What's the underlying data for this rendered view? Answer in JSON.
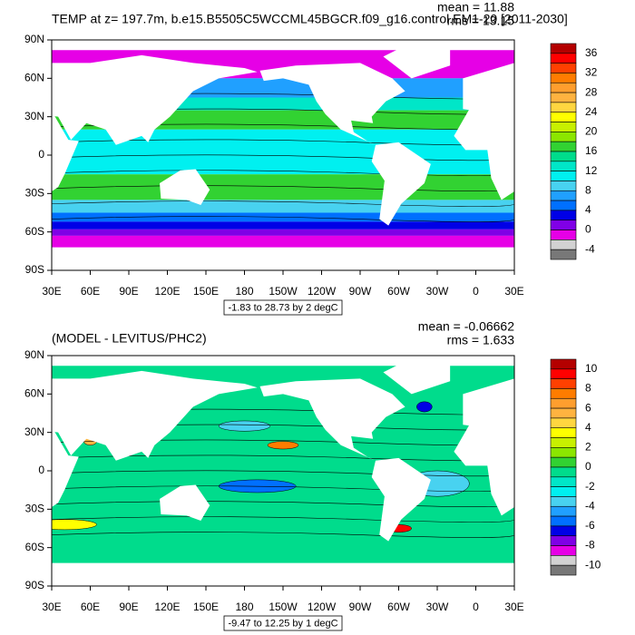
{
  "panels": [
    {
      "title": "TEMP at z= 197.7m, b.e15.B5505C5WCCML45BGCR.f09_g16.control.EM1-20 [2011-2030]",
      "stats": [
        "mean = 11.88",
        "rms = 13.15"
      ],
      "range_label": "-1.83 to 28.73 by 2 degC",
      "colorbar": {
        "labels": [
          36,
          32,
          28,
          24,
          20,
          16,
          12,
          8,
          4,
          0,
          -4
        ]
      }
    },
    {
      "title": "(MODEL - LEVITUS/PHC2)",
      "stats": [
        "mean = -0.06662",
        "rms = 1.633"
      ],
      "range_label": "-9.47 to 12.25 by 1 degC",
      "colorbar": {
        "labels": [
          10,
          8,
          6,
          4,
          2,
          0,
          -2,
          -4,
          -6,
          -8,
          -10
        ]
      }
    }
  ],
  "axes": {
    "lat_labels": [
      "90N",
      "60N",
      "30N",
      "0",
      "30S",
      "60S",
      "90S"
    ],
    "lon_labels": [
      "30E",
      "60E",
      "90E",
      "120E",
      "150E",
      "180",
      "150W",
      "120W",
      "90W",
      "60W",
      "30W",
      "0",
      "30E"
    ]
  },
  "colorbar_colors": [
    "#b40000",
    "#ff0000",
    "#ff4000",
    "#ff7c00",
    "#ff9e2e",
    "#ffb340",
    "#ffd640",
    "#ffff00",
    "#c8f000",
    "#8ce600",
    "#32d232",
    "#00dc8c",
    "#00e6c8",
    "#00f0f0",
    "#48d2f0",
    "#20a0ff",
    "#0070ff",
    "#0000e6",
    "#8000e6",
    "#e600e6",
    "#d2d2d2",
    "#787878"
  ]
}
